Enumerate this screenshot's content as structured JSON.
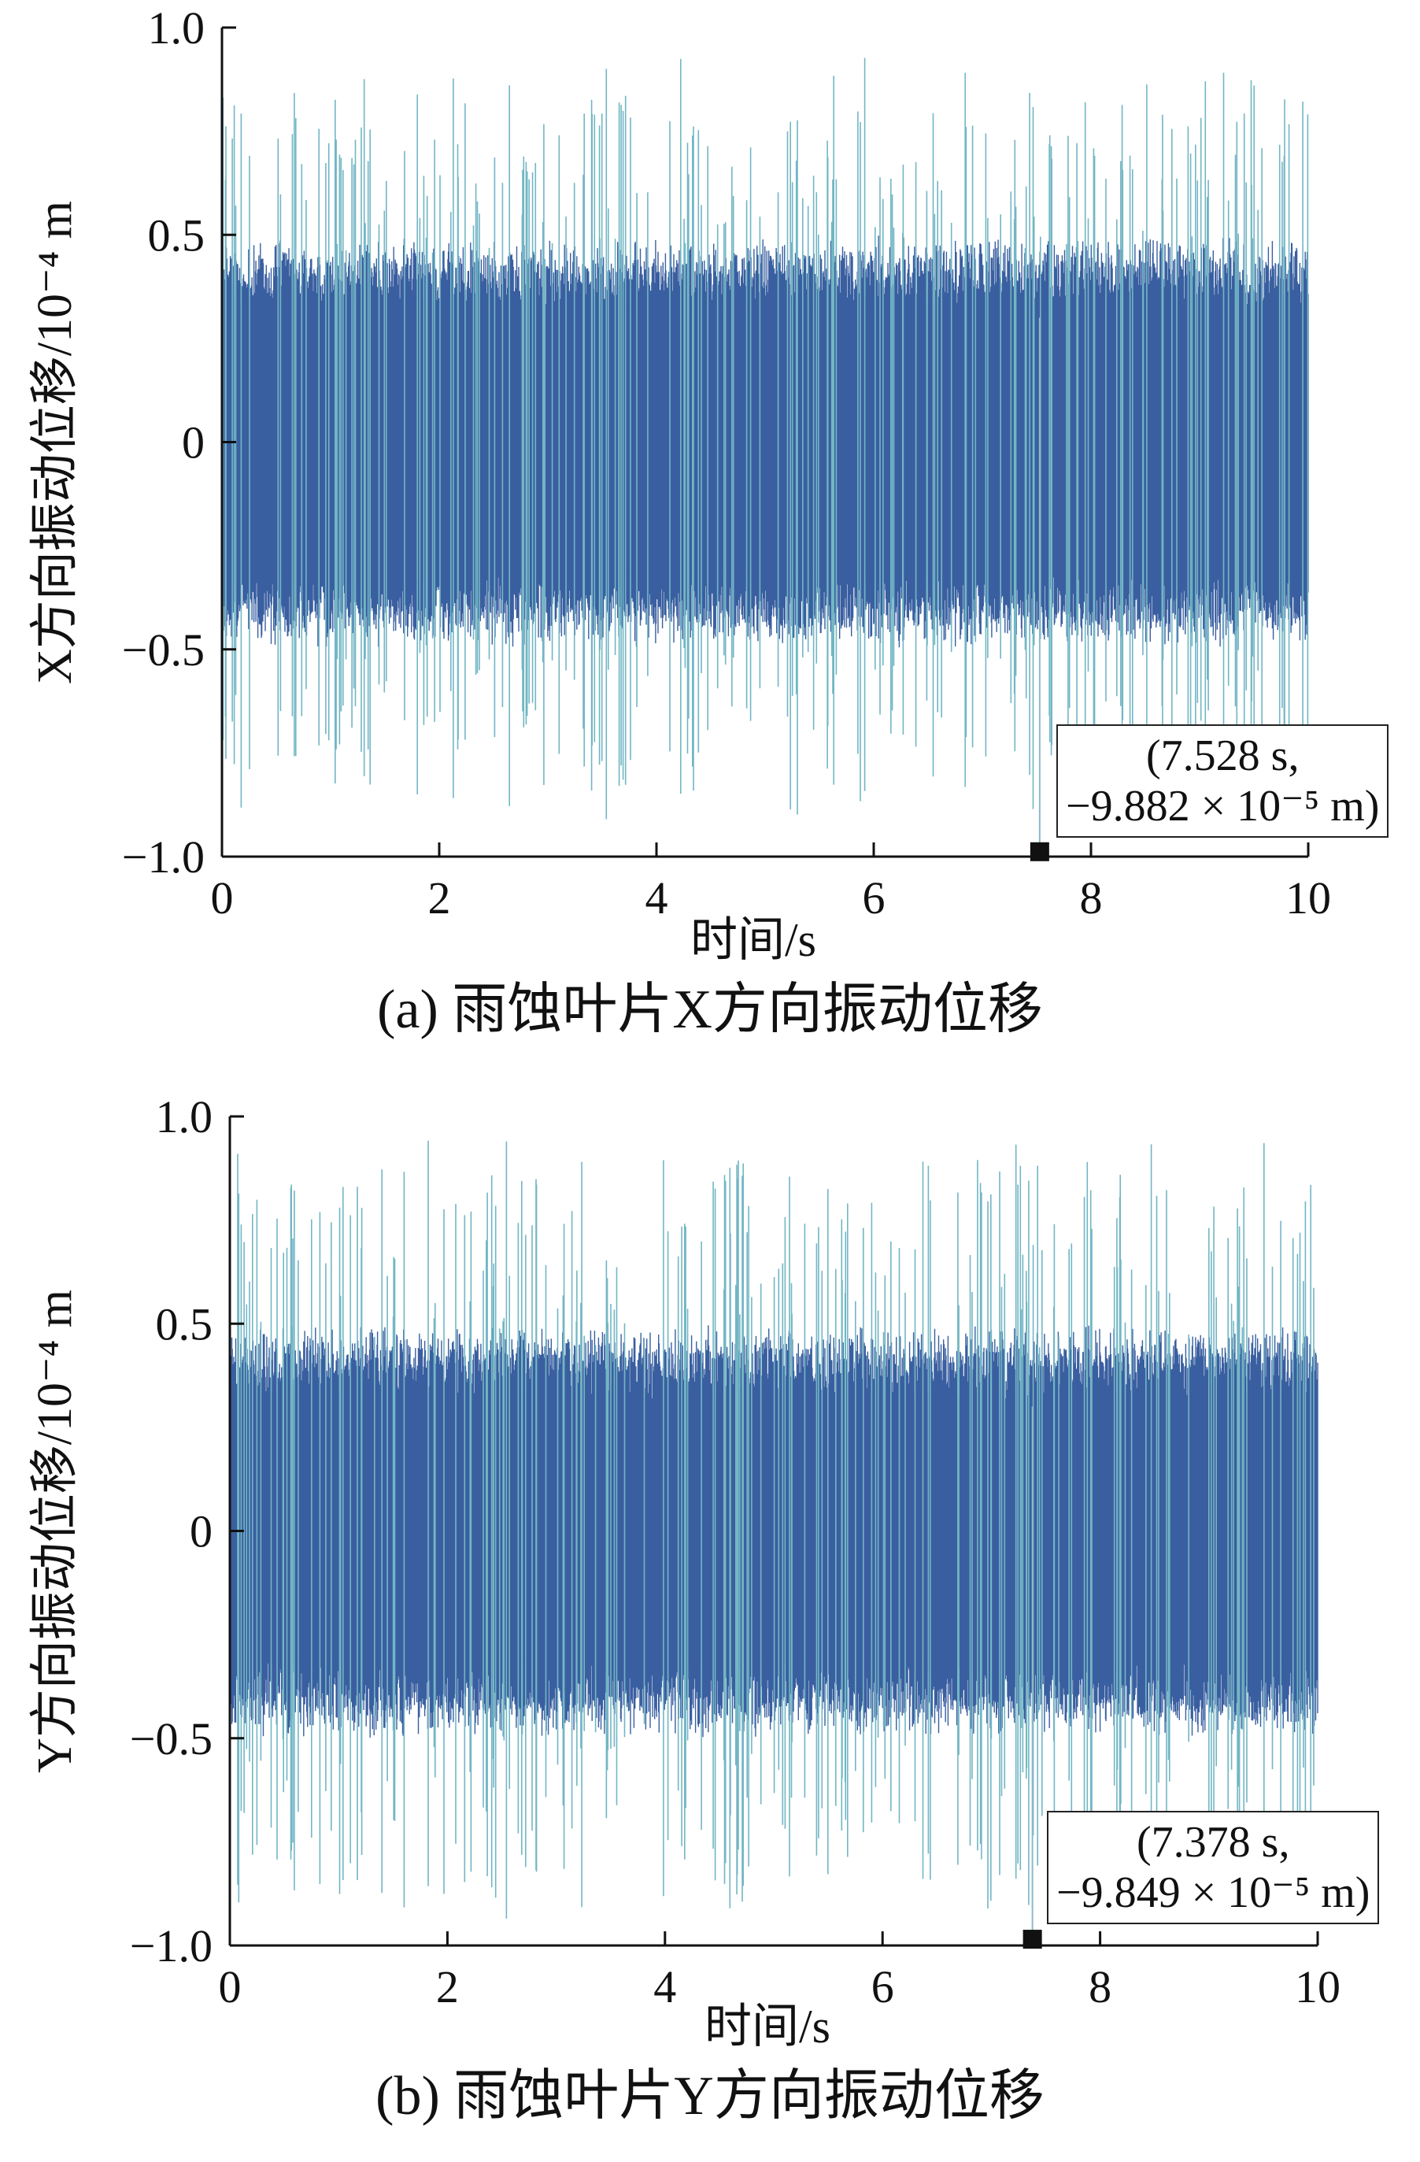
{
  "chart_data": [
    {
      "type": "line",
      "panel": "(a)",
      "caption": "(a) 雨蚀叶片X方向振动位移",
      "xlabel": "时间/s",
      "ylabel": "X方向振动位移/10⁻⁴ m",
      "xlim": [
        0,
        10
      ],
      "ylim": [
        -1.0,
        1.0
      ],
      "xticks": [
        "0",
        "2",
        "4",
        "6",
        "8",
        "10"
      ],
      "yticks": [
        "1.0",
        "0.5",
        "0",
        "−0.5",
        "−1.0"
      ],
      "ytick_values": [
        1.0,
        0.5,
        0,
        -0.5,
        -1.0
      ],
      "xtick_values": [
        0,
        2,
        4,
        6,
        8,
        10
      ],
      "series_colors": [
        "#3a5fa0",
        "#72b6c4"
      ],
      "envelope_amplitude": 0.5,
      "peak_amplitude": 0.95,
      "marker": {
        "x": 7.528,
        "y": -0.9882,
        "color": "#111111"
      },
      "annotation_line1": "(7.528 s,",
      "annotation_line2": "−9.882 × 10⁻⁵ m)"
    },
    {
      "type": "line",
      "panel": "(b)",
      "caption": "(b) 雨蚀叶片Y方向振动位移",
      "xlabel": "时间/s",
      "ylabel": "Y方向振动位移/10⁻⁴ m",
      "xlim": [
        0,
        10
      ],
      "ylim": [
        -1.0,
        1.0
      ],
      "xticks": [
        "0",
        "2",
        "4",
        "6",
        "8",
        "10"
      ],
      "yticks": [
        "1.0",
        "0.5",
        "0",
        "−0.5",
        "−1.0"
      ],
      "ytick_values": [
        1.0,
        0.5,
        0,
        -0.5,
        -1.0
      ],
      "xtick_values": [
        0,
        2,
        4,
        6,
        8,
        10
      ],
      "series_colors": [
        "#3a5fa0",
        "#72b6c4"
      ],
      "envelope_amplitude": 0.5,
      "peak_amplitude": 0.95,
      "marker": {
        "x": 7.378,
        "y": -0.9849,
        "color": "#111111"
      },
      "annotation_line1": "(7.378 s,",
      "annotation_line2": "−9.849 × 10⁻⁵ m)"
    }
  ]
}
